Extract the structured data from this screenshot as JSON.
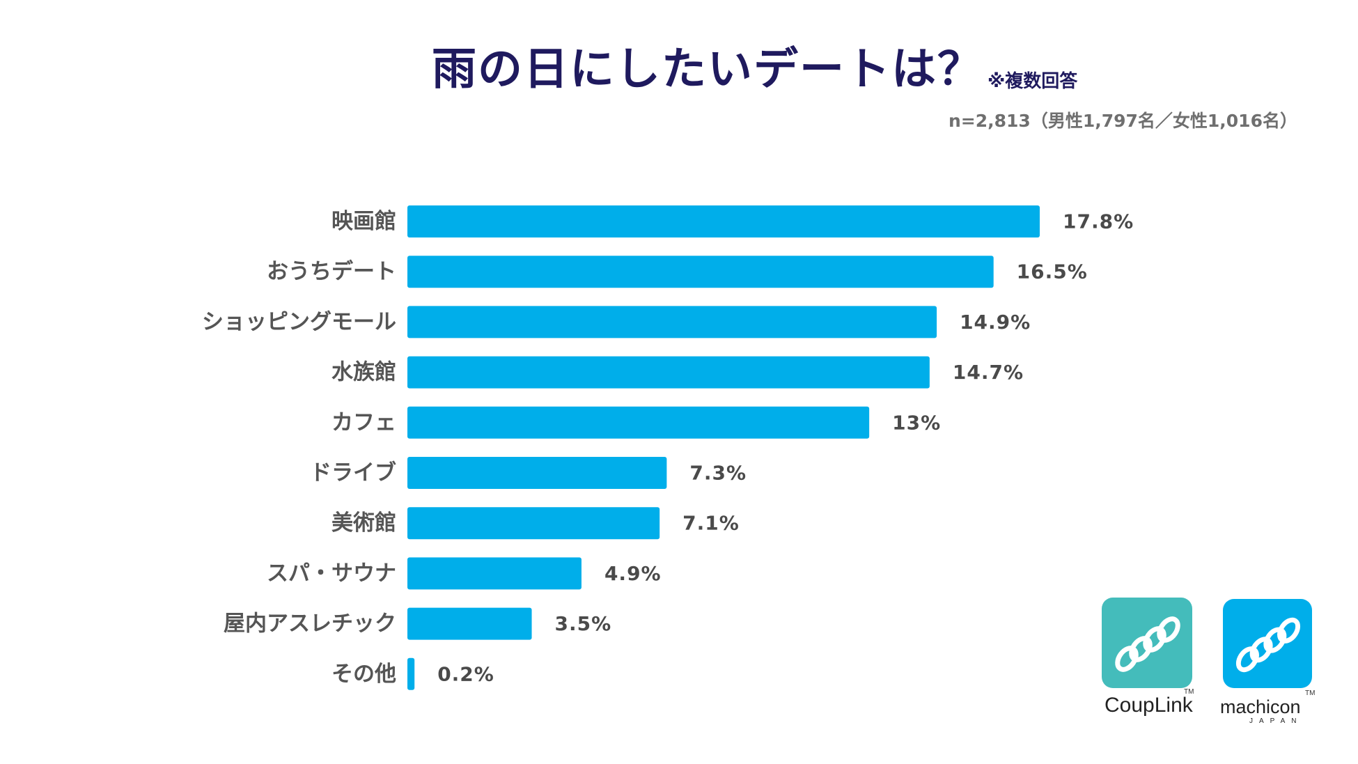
{
  "title": "雨の日にしたいデートは？",
  "note": "※複数回答",
  "sample": "n=2,813（男性1,797名／女性1,016名）",
  "chart_data": {
    "type": "bar",
    "orientation": "horizontal",
    "title": "雨の日にしたいデートは？",
    "categories": [
      "映画館",
      "おうちデート",
      "ショッピングモール",
      "水族館",
      "カフェ",
      "ドライブ",
      "美術館",
      "スパ・サウナ",
      "屋内アスレチック",
      "その他"
    ],
    "values": [
      17.8,
      16.5,
      14.9,
      14.7,
      13,
      7.3,
      7.1,
      4.9,
      3.5,
      0.2
    ],
    "value_labels": [
      "17.8%",
      "16.5%",
      "14.9%",
      "14.7%",
      "13%",
      "7.3%",
      "7.1%",
      "4.9%",
      "3.5%",
      "0.2%"
    ],
    "unit": "%",
    "xlabel": "",
    "ylabel": "",
    "xlim": [
      0,
      20
    ],
    "grid": false,
    "bar_color": "#00aeea"
  },
  "logos": {
    "couplink": {
      "name": "CoupLink",
      "tm": "TM",
      "color": "#44bcbb"
    },
    "machicon": {
      "name": "machicon",
      "sub": "JAPAN",
      "tm": "TM",
      "color": "#00aeea"
    }
  }
}
